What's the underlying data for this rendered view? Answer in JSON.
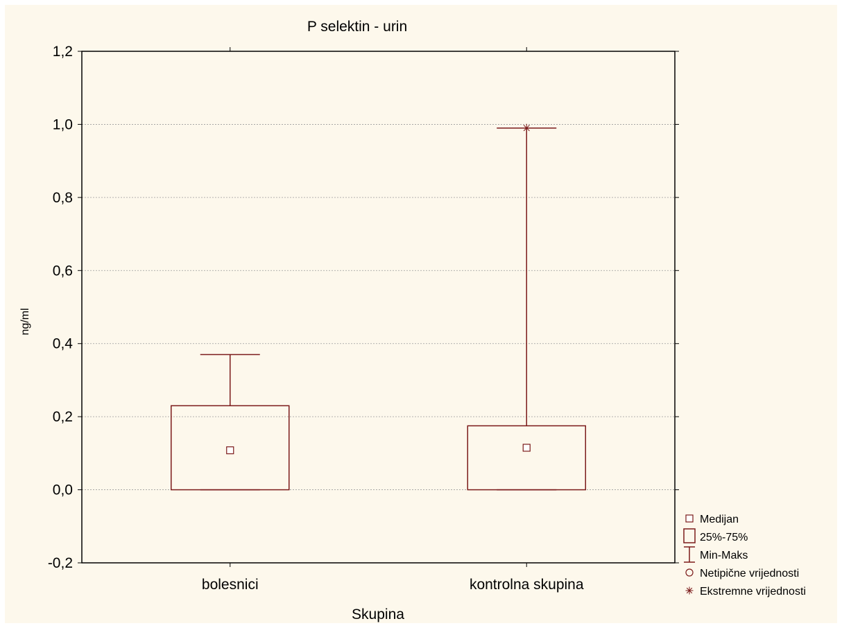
{
  "chart_data": {
    "type": "boxplot",
    "title": "P selektin - urin",
    "xlabel": "Skupina",
    "ylabel": "ng/ml",
    "ylim": [
      -0.2,
      1.2
    ],
    "yticks": [
      "-0,2",
      "0,0",
      "0,2",
      "0,4",
      "0,6",
      "0,8",
      "1,0",
      "1,2"
    ],
    "grid": true,
    "categories": [
      "bolesnici",
      "kontrolna skupina"
    ],
    "boxes": [
      {
        "category": "bolesnici",
        "median": 0.108,
        "q1": 0.0,
        "q3": 0.23,
        "min": 0.0,
        "max": 0.37,
        "outliers": [],
        "extremes": []
      },
      {
        "category": "kontrolna skupina",
        "median": 0.115,
        "q1": 0.0,
        "q3": 0.175,
        "min": 0.0,
        "max": 0.99,
        "outliers": [],
        "extremes": [
          0.99
        ]
      }
    ],
    "legend_position": "bottom-right",
    "legend": [
      {
        "symbol": "median-square",
        "label": "Medijan"
      },
      {
        "symbol": "box",
        "label": "25%-75%"
      },
      {
        "symbol": "whisker",
        "label": "Min-Maks"
      },
      {
        "symbol": "circle",
        "label": "Netipične vrijednosti"
      },
      {
        "symbol": "asterisk",
        "label": "Ekstremne vrijednosti"
      }
    ],
    "colors": {
      "stroke": "#7b1a1a",
      "background": "#fdf8ec",
      "grid": "#9a9a9a"
    }
  }
}
